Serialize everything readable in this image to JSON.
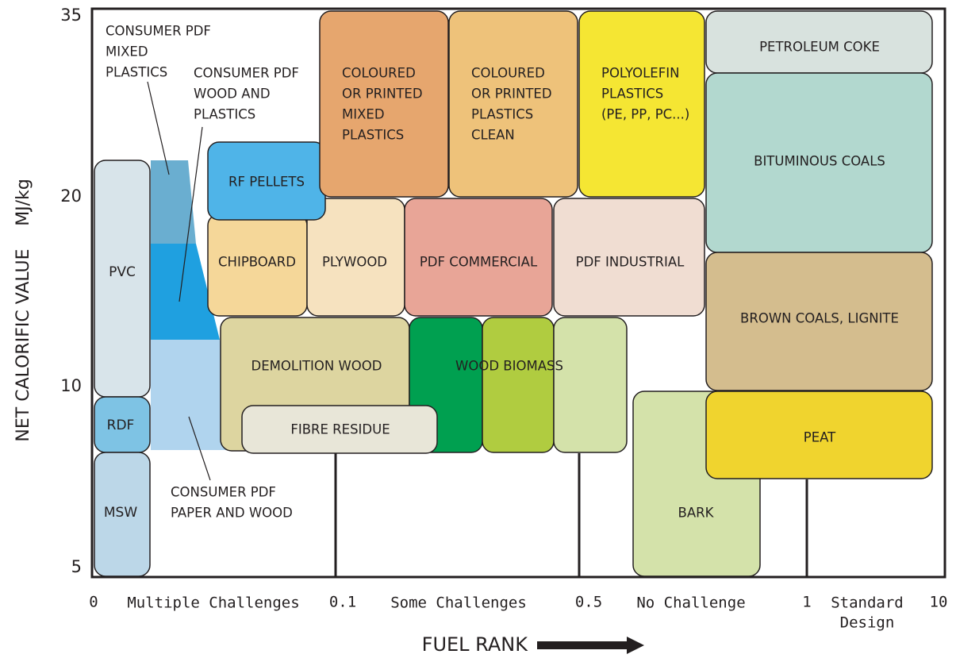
{
  "y_axis": {
    "title": "NET CALORIFIC VALUE",
    "unit": "MJ/kg",
    "ticks": [
      "35",
      "20",
      "10",
      "5"
    ]
  },
  "x_axis": {
    "title": "FUEL RANK",
    "ticks": [
      "0",
      "0.1",
      "0.5",
      "1",
      "10"
    ],
    "zones": [
      [
        "Multiple Challenges"
      ],
      [
        "Some Challenges"
      ],
      [
        "No Challenge"
      ],
      [
        "Standard",
        "Design"
      ]
    ]
  },
  "regions": [
    {
      "label": [
        "PVC"
      ]
    },
    {
      "label": [
        "RDF"
      ]
    },
    {
      "label": [
        "MSW"
      ]
    },
    {
      "label": [
        "RF PELLETS"
      ]
    },
    {
      "label": [
        "CHIPBOARD"
      ]
    },
    {
      "label": [
        "PLYWOOD"
      ]
    },
    {
      "label": [
        "PDF COMMERCIAL"
      ]
    },
    {
      "label": [
        "PDF INDUSTRIAL"
      ]
    },
    {
      "label": [
        "DEMOLITION WOOD"
      ]
    },
    {
      "label": [
        "WOOD BIOMASS"
      ]
    },
    {
      "label": [
        "FIBRE RESIDUE"
      ]
    },
    {
      "label": [
        "COLOURED",
        "OR PRINTED",
        "MIXED",
        "PLASTICS"
      ]
    },
    {
      "label": [
        "COLOURED",
        "OR PRINTED",
        "PLASTICS",
        "CLEAN"
      ]
    },
    {
      "label": [
        "POLYOLEFIN",
        "PLASTICS",
        "(PE, PP, PC...)"
      ]
    },
    {
      "label": [
        "PETROLEUM COKE"
      ]
    },
    {
      "label": [
        "BITUMINOUS COALS"
      ]
    },
    {
      "label": [
        "BROWN COALS, LIGNITE"
      ]
    },
    {
      "label": [
        "BARK"
      ]
    },
    {
      "label": [
        "PEAT"
      ]
    }
  ],
  "callouts": [
    {
      "label": [
        "CONSUMER PDF",
        "MIXED",
        "PLASTICS"
      ]
    },
    {
      "label": [
        "CONSUMER PDF",
        "WOOD AND",
        "PLASTICS"
      ]
    },
    {
      "label": [
        "CONSUMER PDF",
        "PAPER AND WOOD"
      ]
    }
  ]
}
